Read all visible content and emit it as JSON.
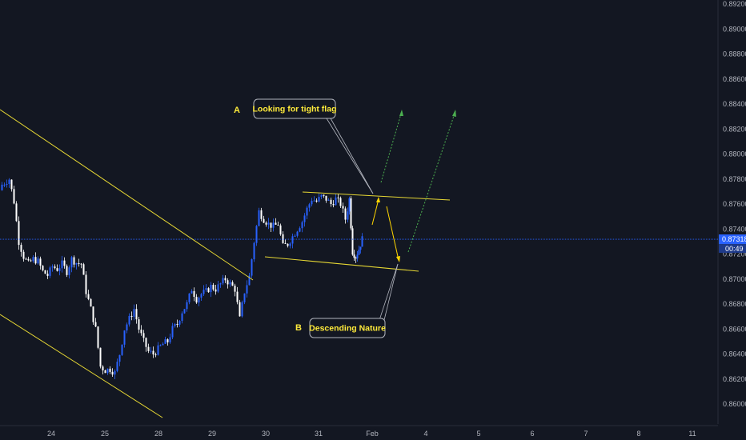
{
  "chart_data": {
    "type": "candlestick",
    "y_ticks": [
      "0.89200",
      "0.89000",
      "0.88800",
      "0.88600",
      "0.88400",
      "0.88200",
      "0.88000",
      "0.87800",
      "0.87600",
      "0.87400",
      "0.87200",
      "0.87000",
      "0.86800",
      "0.86600",
      "0.86400",
      "0.86200",
      "0.86000"
    ],
    "x_ticks": [
      "24",
      "25",
      "28",
      "29",
      "30",
      "31",
      "Feb",
      "4",
      "5",
      "6",
      "7",
      "8",
      "11"
    ],
    "current_price": "0.87318",
    "countdown": "00:49",
    "ylim": [
      0.8596,
      0.8923
    ],
    "grid": false,
    "annotations": {
      "label_a": "A",
      "label_b": "B",
      "callout_a": "Looking for tight flag",
      "callout_b": "Descending Nature"
    },
    "colors": {
      "background": "#131722",
      "bull_candle": "#2962ff",
      "bear_candle": "#ffffff",
      "trendline": "#e6d734",
      "projection_up": "#4caf50",
      "projection_small": "#ffd600",
      "price_line": "#2962ff",
      "text": "#ffeb3b",
      "axis_text": "#b2b5be"
    }
  }
}
